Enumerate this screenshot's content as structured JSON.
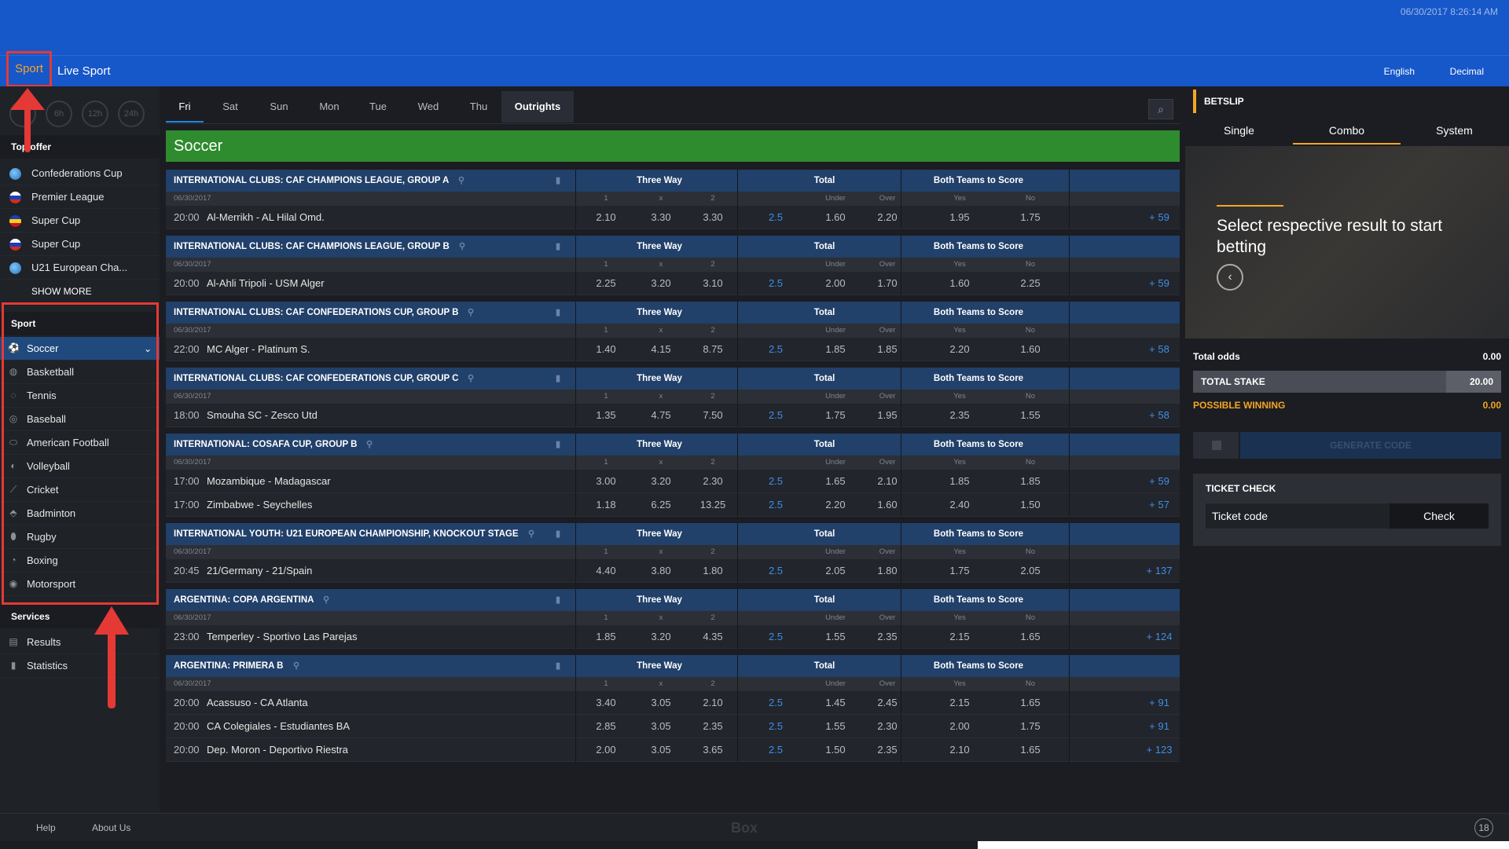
{
  "header": {
    "datetime": "06/30/2017 8:26:14 AM",
    "nav": {
      "sport": "Sport",
      "live_sport": "Live Sport",
      "language": "English",
      "odds_format": "Decimal"
    }
  },
  "sidebar": {
    "time_filters": [
      "",
      "6h",
      "12h",
      "24h"
    ],
    "top_offer_title": "Top offer",
    "top_offer": [
      {
        "label": "Confederations Cup",
        "flag": "globe"
      },
      {
        "label": "Premier League",
        "flag": "russia"
      },
      {
        "label": "Super Cup",
        "flag": "romania"
      },
      {
        "label": "Super Cup",
        "flag": "russia"
      },
      {
        "label": "U21 European Cha...",
        "flag": "globe"
      }
    ],
    "show_more": "SHOW MORE",
    "sport_title": "Sport",
    "sports": [
      {
        "label": "Soccer",
        "icon": "soccer-ball-icon"
      },
      {
        "label": "Basketball",
        "icon": "basketball-icon"
      },
      {
        "label": "Tennis",
        "icon": "tennis-icon"
      },
      {
        "label": "Baseball",
        "icon": "baseball-icon"
      },
      {
        "label": "American Football",
        "icon": "american-football-icon"
      },
      {
        "label": "Volleyball",
        "icon": "volleyball-icon"
      },
      {
        "label": "Cricket",
        "icon": "cricket-icon"
      },
      {
        "label": "Badminton",
        "icon": "badminton-icon"
      },
      {
        "label": "Rugby",
        "icon": "rugby-icon"
      },
      {
        "label": "Boxing",
        "icon": "boxing-icon"
      },
      {
        "label": "Motorsport",
        "icon": "motorsport-icon"
      }
    ],
    "services_title": "Services",
    "services": [
      {
        "label": "Results",
        "icon": "results-icon"
      },
      {
        "label": "Statistics",
        "icon": "statistics-icon"
      }
    ]
  },
  "center": {
    "day_tabs": [
      "Fri",
      "Sat",
      "Sun",
      "Mon",
      "Tue",
      "Wed",
      "Thu",
      "Outrights"
    ],
    "sport_banner": "Soccer",
    "col_heads": {
      "three_way": "Three Way",
      "total": "Total",
      "btts": "Both Teams to Score"
    },
    "sub_heads": {
      "one": "1",
      "x": "x",
      "two": "2",
      "under": "Under",
      "over": "Over",
      "yes": "Yes",
      "no": "No"
    },
    "leagues": [
      {
        "name": "INTERNATIONAL CLUBS: CAF CHAMPIONS LEAGUE, GROUP A",
        "date": "06/30/2017",
        "matches": [
          {
            "time": "20:00",
            "teams": "Al-Merrikh - AL Hilal Omd.",
            "o1": "2.10",
            "ox": "3.30",
            "o2": "3.30",
            "line": "2.5",
            "under": "1.60",
            "over": "2.20",
            "yes": "1.95",
            "no": "1.75",
            "more": "+ 59"
          }
        ]
      },
      {
        "name": "INTERNATIONAL CLUBS: CAF CHAMPIONS LEAGUE, GROUP B",
        "date": "06/30/2017",
        "matches": [
          {
            "time": "20:00",
            "teams": "Al-Ahli Tripoli - USM Alger",
            "o1": "2.25",
            "ox": "3.20",
            "o2": "3.10",
            "line": "2.5",
            "under": "2.00",
            "over": "1.70",
            "yes": "1.60",
            "no": "2.25",
            "more": "+ 59"
          }
        ]
      },
      {
        "name": "INTERNATIONAL CLUBS: CAF CONFEDERATIONS CUP, GROUP B",
        "date": "06/30/2017",
        "matches": [
          {
            "time": "22:00",
            "teams": "MC Alger - Platinum S.",
            "o1": "1.40",
            "ox": "4.15",
            "o2": "8.75",
            "line": "2.5",
            "under": "1.85",
            "over": "1.85",
            "yes": "2.20",
            "no": "1.60",
            "more": "+ 58"
          }
        ]
      },
      {
        "name": "INTERNATIONAL CLUBS: CAF CONFEDERATIONS CUP, GROUP C",
        "date": "06/30/2017",
        "matches": [
          {
            "time": "18:00",
            "teams": "Smouha SC - Zesco Utd",
            "o1": "1.35",
            "ox": "4.75",
            "o2": "7.50",
            "line": "2.5",
            "under": "1.75",
            "over": "1.95",
            "yes": "2.35",
            "no": "1.55",
            "more": "+ 58"
          }
        ]
      },
      {
        "name": "INTERNATIONAL: COSAFA CUP, GROUP B",
        "date": "06/30/2017",
        "matches": [
          {
            "time": "17:00",
            "teams": "Mozambique - Madagascar",
            "o1": "3.00",
            "ox": "3.20",
            "o2": "2.30",
            "line": "2.5",
            "under": "1.65",
            "over": "2.10",
            "yes": "1.85",
            "no": "1.85",
            "more": "+ 59"
          },
          {
            "time": "17:00",
            "teams": "Zimbabwe - Seychelles",
            "o1": "1.18",
            "ox": "6.25",
            "o2": "13.25",
            "line": "2.5",
            "under": "2.20",
            "over": "1.60",
            "yes": "2.40",
            "no": "1.50",
            "more": "+ 57"
          }
        ]
      },
      {
        "name": "INTERNATIONAL YOUTH: U21 EUROPEAN CHAMPIONSHIP, KNOCKOUT STAGE",
        "date": "06/30/2017",
        "matches": [
          {
            "time": "20:45",
            "teams": "21/Germany - 21/Spain",
            "o1": "4.40",
            "ox": "3.80",
            "o2": "1.80",
            "line": "2.5",
            "under": "2.05",
            "over": "1.80",
            "yes": "1.75",
            "no": "2.05",
            "more": "+ 137"
          }
        ]
      },
      {
        "name": "ARGENTINA: COPA ARGENTINA",
        "date": "06/30/2017",
        "matches": [
          {
            "time": "23:00",
            "teams": "Temperley - Sportivo Las Parejas",
            "o1": "1.85",
            "ox": "3.20",
            "o2": "4.35",
            "line": "2.5",
            "under": "1.55",
            "over": "2.35",
            "yes": "2.15",
            "no": "1.65",
            "more": "+ 124"
          }
        ]
      },
      {
        "name": "ARGENTINA: PRIMERA B",
        "date": "06/30/2017",
        "matches": [
          {
            "time": "20:00",
            "teams": "Acassuso - CA Atlanta",
            "o1": "3.40",
            "ox": "3.05",
            "o2": "2.10",
            "line": "2.5",
            "under": "1.45",
            "over": "2.45",
            "yes": "2.15",
            "no": "1.65",
            "more": "+ 91"
          },
          {
            "time": "20:00",
            "teams": "CA Colegiales - Estudiantes BA",
            "o1": "2.85",
            "ox": "3.05",
            "o2": "2.35",
            "line": "2.5",
            "under": "1.55",
            "over": "2.30",
            "yes": "2.00",
            "no": "1.75",
            "more": "+ 91"
          },
          {
            "time": "20:00",
            "teams": "Dep. Moron - Deportivo Riestra",
            "o1": "2.00",
            "ox": "3.05",
            "o2": "3.65",
            "line": "2.5",
            "under": "1.50",
            "over": "2.35",
            "yes": "2.10",
            "no": "1.65",
            "more": "+ 123"
          }
        ]
      }
    ]
  },
  "betslip": {
    "title": "BETSLIP",
    "tabs": [
      "Single",
      "Combo",
      "System"
    ],
    "empty_message": "Select respective result to start betting",
    "total_odds_label": "Total odds",
    "total_odds_value": "0.00",
    "total_stake_label": "TOTAL STAKE",
    "total_stake_value": "20.00",
    "possible_winning_label": "POSSIBLE WINNING",
    "possible_winning_value": "0.00",
    "generate_code": "GENERATE CODE",
    "ticket_check_title": "TICKET CHECK",
    "ticket_code_placeholder": "Ticket code",
    "check_button": "Check"
  },
  "footer": {
    "help": "Help",
    "about": "About Us",
    "logo": "Box",
    "age": "18"
  },
  "colors": {
    "brand_blue": "#1657c9",
    "accent_orange": "#f5a623",
    "highlight_red": "#e53935",
    "soccer_green": "#2e8b2e"
  }
}
